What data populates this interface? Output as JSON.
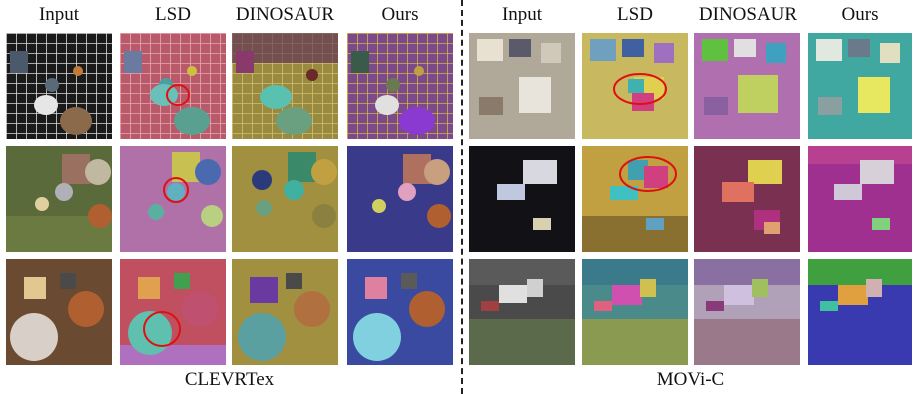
{
  "panels": [
    {
      "caption": "CLEVRTex",
      "columns": [
        "Input",
        "LSD",
        "DINOSAUR",
        "Ours"
      ]
    },
    {
      "caption": "MOVi-C",
      "columns": [
        "Input",
        "LSD",
        "DINOSAUR",
        "Ours"
      ]
    }
  ]
}
